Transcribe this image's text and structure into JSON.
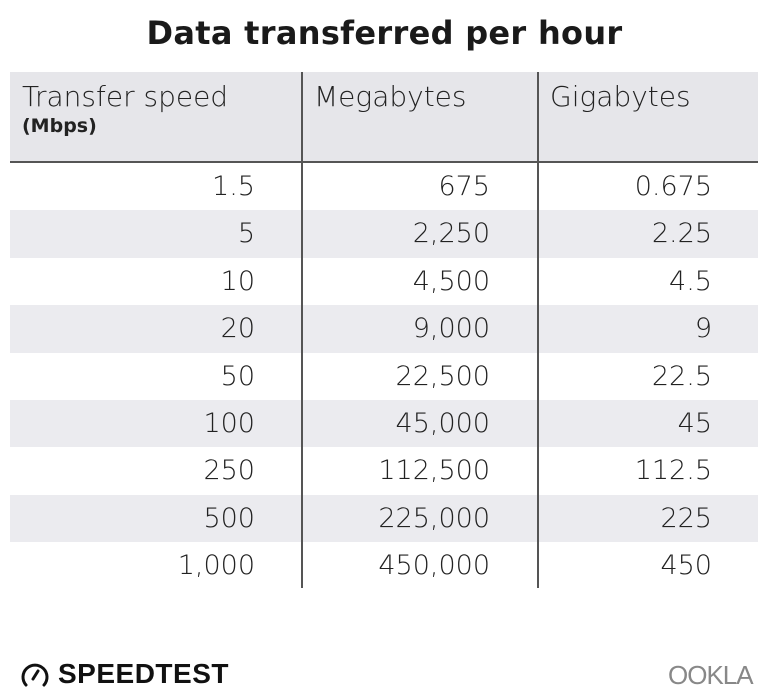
{
  "chart_data": {
    "type": "table",
    "title": "Data transferred per hour",
    "columns": [
      {
        "label": "Transfer speed",
        "unit": "(Mbps)"
      },
      {
        "label": "Megabytes"
      },
      {
        "label": "Gigabytes"
      }
    ],
    "rows": [
      [
        "1.5",
        "675",
        "0.675"
      ],
      [
        "5",
        "2,250",
        "2.25"
      ],
      [
        "10",
        "4,500",
        "4.5"
      ],
      [
        "20",
        "9,000",
        "9"
      ],
      [
        "50",
        "22,500",
        "22.5"
      ],
      [
        "100",
        "45,000",
        "45"
      ],
      [
        "250",
        "112,500",
        "112.5"
      ],
      [
        "500",
        "225,000",
        "225"
      ],
      [
        "1,000",
        "450,000",
        "450"
      ]
    ]
  },
  "branding": {
    "left_logo": "SPEEDTEST",
    "right_logo": "OOKLA"
  },
  "colors": {
    "header_bg": "#e6e6ea",
    "stripe": "#ebebef",
    "rule": "#555555"
  }
}
